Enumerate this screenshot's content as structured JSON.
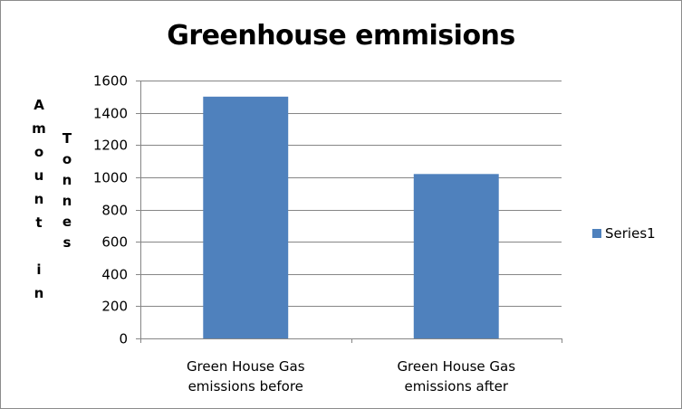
{
  "chart_data": {
    "type": "bar",
    "title": "Greenhouse emmisions",
    "ylabel_lines": [
      [
        "A",
        "m",
        "o",
        "u",
        "n",
        "t",
        "",
        "i",
        "n"
      ],
      [
        "T",
        "o",
        "n",
        "n",
        "e",
        "s"
      ]
    ],
    "categories": [
      [
        "Green House Gas",
        "emissions before"
      ],
      [
        "Green House Gas",
        "emissions after"
      ]
    ],
    "series": [
      {
        "name": "Series1",
        "values": [
          1500,
          1020
        ],
        "color": "#4f81bd"
      }
    ],
    "ylim": [
      0,
      1600
    ],
    "yticks": [
      0,
      200,
      400,
      600,
      800,
      1000,
      1200,
      1400,
      1600
    ],
    "grid": true,
    "legend": "right"
  }
}
